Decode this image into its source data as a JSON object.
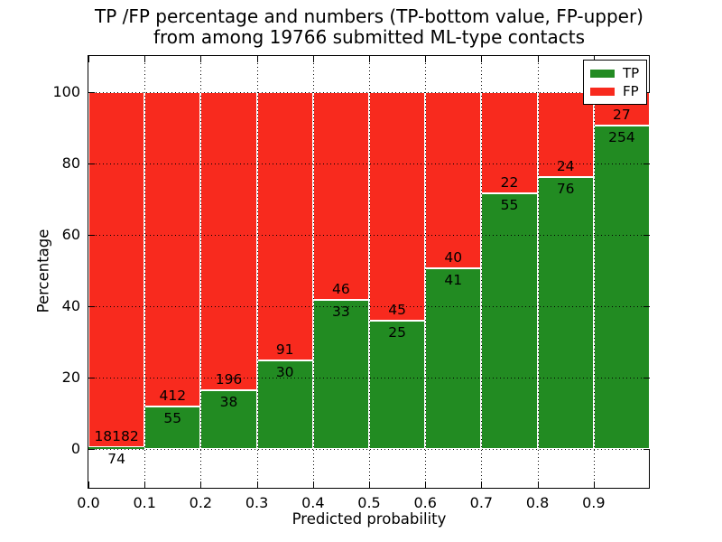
{
  "figure": {
    "title_line1": "TP /FP percentage and numbers (TP-bottom value, FP-upper)",
    "title_line2": "from among 19766 submitted ML-type contacts"
  },
  "chart_data": {
    "type": "bar",
    "variant": "stacked-percentage-histogram",
    "title": "TP /FP percentage and numbers (TP-bottom value, FP-upper)\nfrom among 19766 submitted ML-type contacts",
    "xlabel": "Predicted probability",
    "ylabel": "Percentage",
    "total_contacts": 19766,
    "xlim": [
      0.0,
      1.0
    ],
    "ylim": [
      -11,
      110
    ],
    "xtick_labels": [
      "0.0",
      "0.1",
      "0.2",
      "0.3",
      "0.4",
      "0.5",
      "0.6",
      "0.7",
      "0.8",
      "0.9"
    ],
    "ytick_values": [
      0,
      20,
      40,
      60,
      80,
      100
    ],
    "grid": "dotted-black",
    "bin_edges": [
      0.0,
      0.1,
      0.2,
      0.3,
      0.4,
      0.5,
      0.6,
      0.7,
      0.8,
      0.9,
      1.0
    ],
    "series": [
      {
        "name": "TP",
        "color": "#228b22",
        "counts": [
          74,
          55,
          38,
          30,
          33,
          25,
          41,
          55,
          76,
          254
        ]
      },
      {
        "name": "FP",
        "color": "#f82a1e",
        "counts": [
          18182,
          412,
          196,
          91,
          46,
          45,
          40,
          22,
          24,
          27
        ]
      }
    ],
    "tp_percent_of_bin": [
      0.41,
      11.78,
      16.24,
      24.79,
      41.77,
      35.71,
      50.62,
      71.43,
      76.0,
      90.39
    ],
    "legend": {
      "position": "upper-right",
      "entries": [
        {
          "label": "TP",
          "color": "#228b22"
        },
        {
          "label": "FP",
          "color": "#f82a1e"
        }
      ]
    },
    "colors": {
      "bar_edge": "#ffffff",
      "spine": "#000000",
      "grid": "#000000",
      "background": "#ffffff"
    }
  }
}
